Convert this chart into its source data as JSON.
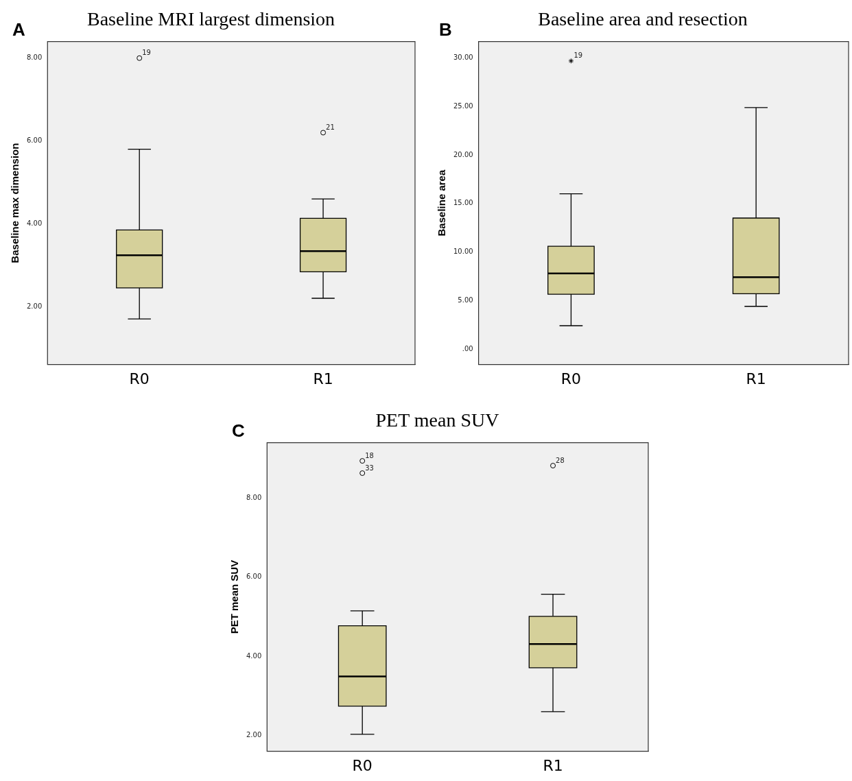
{
  "chart_data": [
    {
      "type": "box",
      "title": "Baseline MRI largest dimension",
      "ylabel": "Baseline max dimension",
      "categories": [
        "R0",
        "R1"
      ],
      "ylim": [
        0.6,
        8.4
      ],
      "yticks": [
        {
          "value": 2,
          "label": "2.00"
        },
        {
          "value": 4,
          "label": "4.00"
        },
        {
          "value": 6,
          "label": "6.00"
        },
        {
          "value": 8,
          "label": "8.00"
        }
      ],
      "grid": false,
      "marker": "circle",
      "series": [
        {
          "color": "#d5d09a",
          "boxes": [
            {
              "low": 1.7,
              "q1": 2.45,
              "median": 3.24,
              "q3": 3.85,
              "high": 5.8,
              "outliers": [
                8.0
              ]
            },
            {
              "low": 2.2,
              "q1": 2.84,
              "median": 3.34,
              "q3": 4.13,
              "high": 4.6,
              "outliers": [
                6.2
              ]
            }
          ]
        }
      ],
      "annotations": [
        "A",
        "19",
        "21"
      ]
    },
    {
      "type": "box",
      "title": "Baseline area and resection",
      "ylabel": "Baseline area",
      "categories": [
        "R0",
        "R1"
      ],
      "ylim": [
        -1.6,
        31.7
      ],
      "yticks": [
        {
          "value": 0,
          "label": ".00"
        },
        {
          "value": 5,
          "label": "5.00"
        },
        {
          "value": 10,
          "label": "10.00"
        },
        {
          "value": 15,
          "label": "15.00"
        },
        {
          "value": 20,
          "label": "20.00"
        },
        {
          "value": 25,
          "label": "25.00"
        },
        {
          "value": 30,
          "label": "30.00"
        }
      ],
      "grid": false,
      "marker": "star",
      "series": [
        {
          "color": "#d5d09a",
          "boxes": [
            {
              "low": 2.4,
              "q1": 5.65,
              "median": 7.8,
              "q3": 10.6,
              "high": 16.0,
              "outliers": [
                29.7
              ]
            },
            {
              "low": 4.4,
              "q1": 5.7,
              "median": 7.4,
              "q3": 13.5,
              "high": 24.9
            }
          ]
        }
      ],
      "annotations": [
        "B",
        "19"
      ]
    },
    {
      "type": "box",
      "title": "PET mean SUV",
      "ylabel": "PET mean SUV",
      "categories": [
        "R0",
        "R1"
      ],
      "ylim": [
        1.6,
        9.4
      ],
      "yticks": [
        {
          "value": 2,
          "label": "2.00"
        },
        {
          "value": 4,
          "label": "4.00"
        },
        {
          "value": 6,
          "label": "6.00"
        },
        {
          "value": 8,
          "label": "8.00"
        }
      ],
      "grid": false,
      "marker": "circle",
      "series": [
        {
          "color": "#d5d09a",
          "boxes": [
            {
              "low": 2.03,
              "q1": 2.74,
              "median": 3.49,
              "q3": 4.77,
              "high": 5.15,
              "outliers": [
                8.94,
                8.63
              ]
            },
            {
              "low": 2.6,
              "q1": 3.71,
              "median": 4.31,
              "q3": 5.01,
              "high": 5.57,
              "outliers": [
                8.82
              ]
            }
          ]
        }
      ],
      "annotations": [
        "C",
        "18",
        "33",
        "28"
      ]
    }
  ]
}
